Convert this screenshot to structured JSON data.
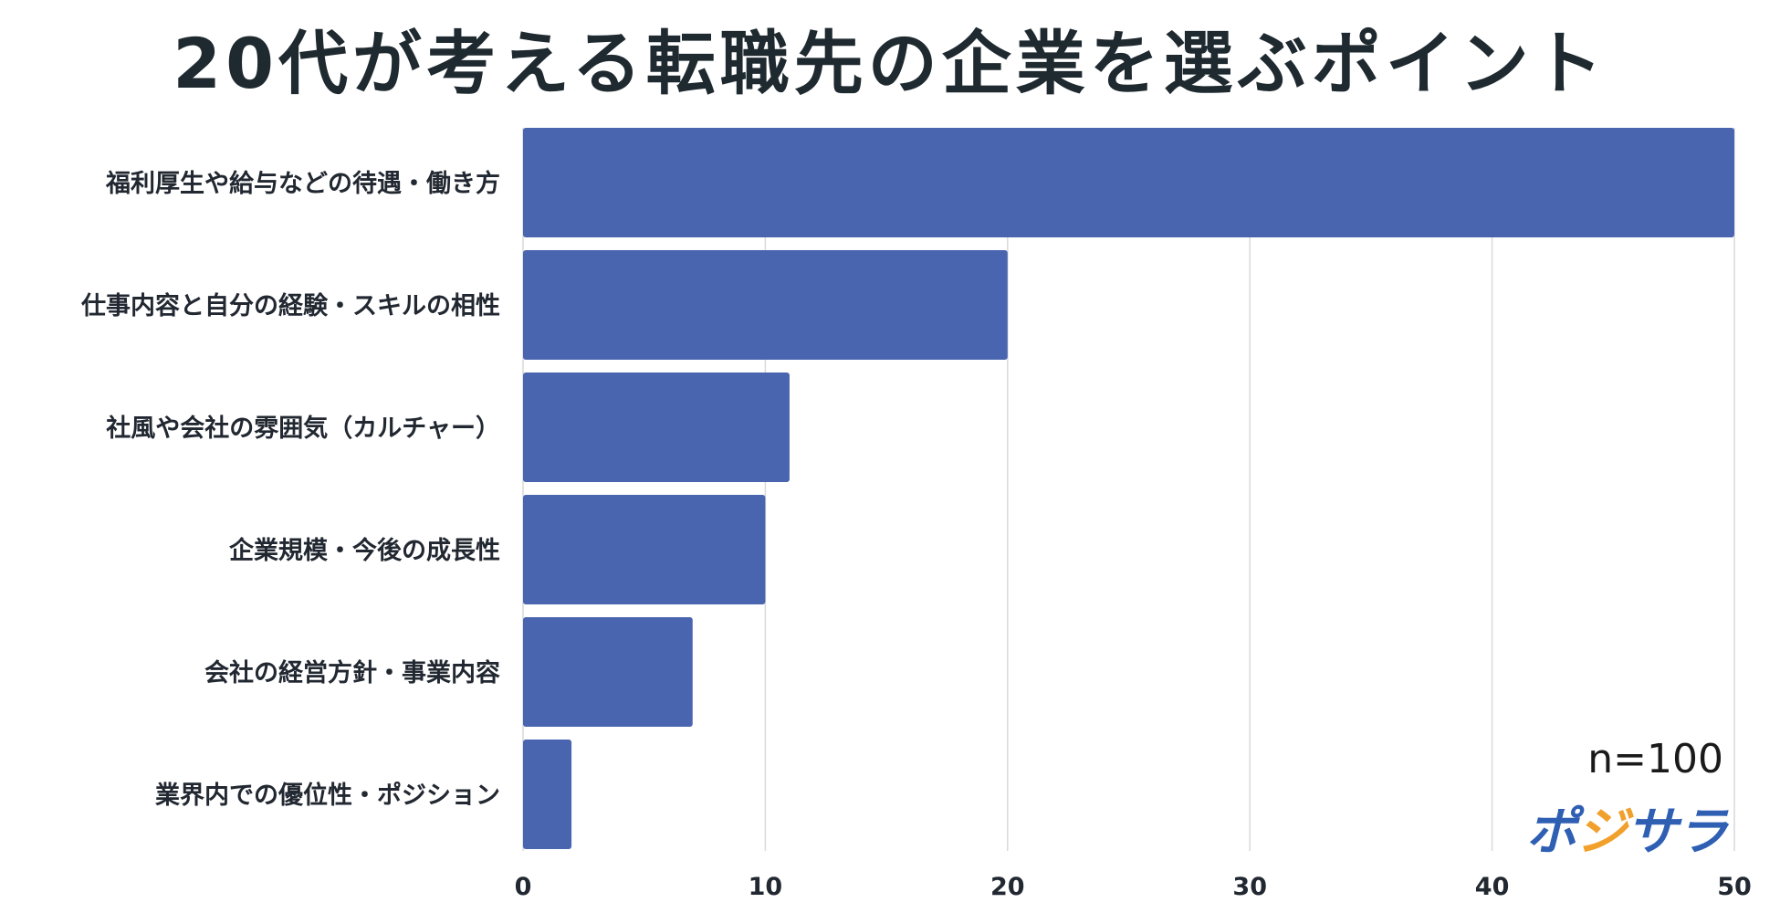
{
  "chart_data": {
    "type": "bar",
    "orientation": "horizontal",
    "title": "20代が考える転職先の企業を選ぶポイント",
    "categories": [
      "福利厚生や給与などの待遇・働き方",
      "仕事内容と自分の経験・スキルの相性",
      "社風や会社の雰囲気（カルチャー）",
      "企業規模・今後の成長性",
      "会社の経営方針・事業内容",
      "業界内での優位性・ポジション"
    ],
    "values": [
      50,
      20,
      11,
      10,
      7,
      2
    ],
    "xlim": [
      0,
      50
    ],
    "xticks": [
      0,
      10,
      20,
      30,
      40,
      50
    ],
    "grid": "vertical",
    "colors": {
      "bar": "#4a65b0",
      "grid": "#d9d9d9",
      "text": "#1f2a30"
    },
    "note": "n=100"
  },
  "brand": {
    "text": "ポジサラ",
    "colors": {
      "primary": "#2f5fb3",
      "accent": "#f2a02c"
    }
  }
}
